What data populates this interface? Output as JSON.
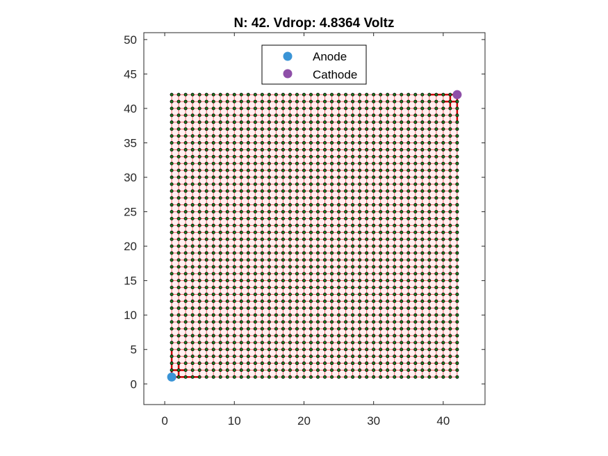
{
  "chart_data": {
    "type": "scatter",
    "title": "N: 42. Vdrop: 4.8364 Voltz",
    "xlabel": "",
    "ylabel": "",
    "xlim": [
      -3,
      46
    ],
    "ylim": [
      -3,
      51
    ],
    "xticks": [
      0,
      10,
      20,
      30,
      40
    ],
    "yticks": [
      0,
      5,
      10,
      15,
      20,
      25,
      30,
      35,
      40,
      45,
      50
    ],
    "grid": false,
    "legend_position": "top-center",
    "lattice": {
      "n": 42,
      "min": 1,
      "max": 42,
      "node_color": "#1e7a1e",
      "node_outline": "#000000",
      "edge_color": "#ff6666",
      "background_color": "#fff0f0"
    },
    "highlight_edges": {
      "color": "#cc0000",
      "paths": [
        [
          [
            1,
            1
          ],
          [
            1,
            5
          ]
        ],
        [
          [
            1,
            1
          ],
          [
            5,
            1
          ]
        ],
        [
          [
            2,
            1
          ],
          [
            2,
            3
          ]
        ],
        [
          [
            1,
            2
          ],
          [
            3,
            2
          ]
        ],
        [
          [
            42,
            42
          ],
          [
            42,
            38
          ]
        ],
        [
          [
            42,
            42
          ],
          [
            38,
            42
          ]
        ],
        [
          [
            41,
            42
          ],
          [
            41,
            40
          ]
        ],
        [
          [
            42,
            41
          ],
          [
            40,
            41
          ]
        ]
      ]
    },
    "series": [
      {
        "name": "Anode",
        "x": [
          1
        ],
        "y": [
          1
        ],
        "color": "#3a94d6"
      },
      {
        "name": "Cathode",
        "x": [
          42
        ],
        "y": [
          42
        ],
        "color": "#8e4fa8"
      }
    ]
  }
}
